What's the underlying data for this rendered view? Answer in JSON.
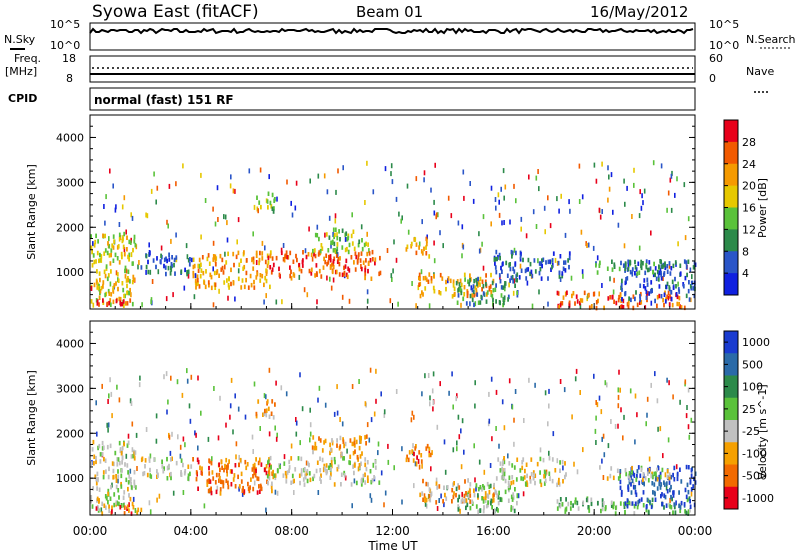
{
  "header": {
    "title": "Syowa East (fitACF)",
    "beam": "Beam 01",
    "date": "16/May/2012"
  },
  "summary_panels": {
    "nsky_label": "N.Sky",
    "nsky_ticks": [
      "10^5",
      "10^0"
    ],
    "nsearch_label": "N.Search",
    "nsearch_ticks": [
      "10^5",
      "10^0"
    ],
    "freq_label_1": "Freq.",
    "freq_label_2": "[MHz]",
    "freq_ticks": [
      "18",
      "8"
    ],
    "nave_label": "Nave",
    "nave_ticks": [
      "60",
      "0"
    ],
    "cpid_label": "CPID",
    "cpid_value": "normal (fast) 151 RF"
  },
  "chart_data": [
    {
      "type": "heatmap",
      "panel": "power",
      "xlabel": "",
      "ylabel": "Slant Range [km]",
      "xlim": [
        0,
        24
      ],
      "ylim": [
        180,
        4500
      ],
      "y_ticks": [
        "4000",
        "3000",
        "2000",
        "1000"
      ],
      "colorbar_label": "Power [dB]",
      "colorbar_ticks": [
        "28",
        "24",
        "20",
        "16",
        "12",
        "8",
        "4"
      ],
      "colors": [
        "#e8001a",
        "#f25a00",
        "#f59a00",
        "#e6c800",
        "#5ac23a",
        "#2c8a4a",
        "#2a55c8",
        "#1020e0"
      ]
    },
    {
      "type": "heatmap",
      "panel": "velocity",
      "xlabel": "Time UT",
      "ylabel": "Slant Range [km]",
      "xlim": [
        0,
        24
      ],
      "ylim": [
        180,
        4500
      ],
      "x_ticks": [
        "00:00",
        "04:00",
        "08:00",
        "12:00",
        "16:00",
        "20:00",
        "00:00"
      ],
      "y_ticks": [
        "4000",
        "3000",
        "2000",
        "1000"
      ],
      "colorbar_label": "Velocity [m s^-1]",
      "colorbar_ticks": [
        "1000",
        "500",
        "100",
        "25",
        "-25",
        "-100",
        "-500",
        "-1000"
      ],
      "colors": [
        "#1a3bd0",
        "#2a6aa8",
        "#2c8a4a",
        "#5ac23a",
        "#c0c0c0",
        "#f5a000",
        "#f26a00",
        "#e8001a"
      ]
    }
  ]
}
